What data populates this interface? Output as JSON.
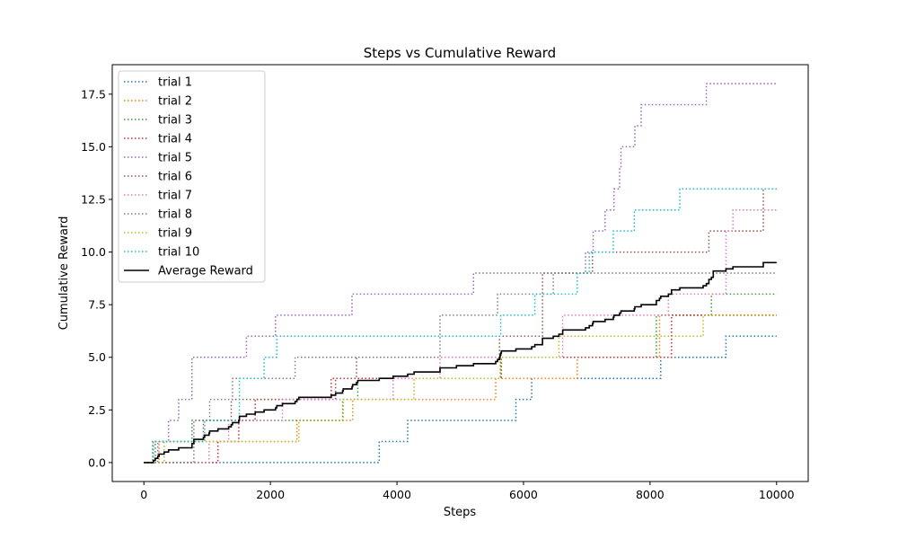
{
  "chart_data": {
    "type": "line",
    "title": "Steps vs Cumulative Reward",
    "xlabel": "Steps",
    "ylabel": "Cumulative Reward",
    "xlim": [
      -500,
      10500
    ],
    "ylim": [
      -0.9,
      18.9
    ],
    "xticks": [
      0,
      2000,
      4000,
      6000,
      8000,
      10000
    ],
    "xtick_labels": [
      "0",
      "2000",
      "4000",
      "6000",
      "8000",
      "10000"
    ],
    "yticks": [
      0,
      2.5,
      5,
      7.5,
      10,
      12.5,
      15,
      17.5
    ],
    "ytick_labels": [
      "0.0",
      "2.5",
      "5.0",
      "7.5",
      "10.0",
      "12.5",
      "15.0",
      "17.5"
    ],
    "grid": false,
    "legend_position": "upper-left",
    "series": [
      {
        "name": "trial 1",
        "color": "#1f77b4",
        "style": "dotted",
        "x": [
          0,
          3720,
          4170,
          5880,
          6130,
          8170,
          9200,
          10000
        ],
        "y": [
          0,
          1,
          2,
          3,
          4,
          5,
          6,
          6
        ]
      },
      {
        "name": "trial 2",
        "color": "#ff7f0e",
        "style": "dotted",
        "x": [
          0,
          240,
          2420,
          3300,
          5560,
          6850,
          8150,
          10000
        ],
        "y": [
          0,
          1,
          2,
          3,
          4,
          5,
          7,
          7
        ]
      },
      {
        "name": "trial 3",
        "color": "#2ca02c",
        "style": "dotted",
        "x": [
          0,
          180,
          760,
          3140,
          3380,
          5650,
          8100,
          8970,
          10000
        ],
        "y": [
          0,
          1,
          2,
          3,
          4,
          5,
          7,
          8,
          8
        ]
      },
      {
        "name": "trial 4",
        "color": "#d62728",
        "style": "dotted",
        "x": [
          0,
          1170,
          1500,
          1760,
          2580,
          2960,
          3000,
          4940,
          5640,
          8340,
          9000,
          10000
        ],
        "y": [
          0,
          1,
          2,
          3,
          3,
          4,
          4,
          4,
          5,
          7,
          7,
          7
        ]
      },
      {
        "name": "trial 5",
        "color": "#9467bd",
        "style": "dotted",
        "x": [
          0,
          220,
          390,
          550,
          760,
          1620,
          2080,
          3290,
          5210,
          6980,
          7100,
          7290,
          7430,
          7520,
          7540,
          7760,
          7860,
          7900,
          7950,
          8890,
          10000
        ],
        "y": [
          0,
          1,
          2,
          3,
          5,
          6,
          7,
          8,
          9,
          10,
          11,
          12,
          13,
          14,
          15,
          16,
          17,
          17,
          17,
          18,
          18
        ]
      },
      {
        "name": "trial 6",
        "color": "#8c564b",
        "style": "dotted",
        "x": [
          0,
          140,
          360,
          940,
          1380,
          1800,
          3030,
          3360,
          5620,
          6300,
          7090,
          8930,
          9100,
          9790,
          10000
        ],
        "y": [
          0,
          1,
          1,
          2,
          3,
          3,
          4,
          5,
          6,
          9,
          10,
          11,
          11,
          13,
          13
        ]
      },
      {
        "name": "trial 7",
        "color": "#e377c2",
        "style": "dotted",
        "x": [
          0,
          1030,
          1340,
          2190,
          2640,
          3940,
          4680,
          6620,
          6830,
          8290,
          9200,
          9310,
          10000
        ],
        "y": [
          0,
          1,
          2,
          3,
          3,
          4,
          5,
          7,
          7,
          8,
          11,
          12,
          12
        ]
      },
      {
        "name": "trial 8",
        "color": "#7f7f7f",
        "style": "dotted",
        "x": [
          0,
          790,
          1040,
          1400,
          2390,
          4680,
          5590,
          6470,
          6980,
          10000
        ],
        "y": [
          0,
          2,
          3,
          4,
          5,
          7,
          8,
          9,
          9,
          9
        ]
      },
      {
        "name": "trial 9",
        "color": "#bcbd22",
        "style": "dotted",
        "x": [
          0,
          320,
          2450,
          3150,
          4270,
          5630,
          6560,
          6650,
          8840,
          10000
        ],
        "y": [
          0,
          1,
          2,
          3,
          4,
          5,
          6,
          6,
          7,
          7
        ]
      },
      {
        "name": "trial 10",
        "color": "#17becf",
        "style": "dotted",
        "x": [
          0,
          150,
          960,
          1510,
          1900,
          2100,
          5640,
          6180,
          6850,
          7040,
          7420,
          7750,
          8470,
          10000
        ],
        "y": [
          0,
          1,
          2,
          4,
          5,
          6,
          7,
          8,
          9,
          10,
          11,
          12,
          13,
          13
        ]
      },
      {
        "name": "Average Reward",
        "color": "#000000",
        "style": "solid",
        "x": [
          0,
          150,
          180,
          220,
          240,
          320,
          360,
          390,
          550,
          760,
          790,
          940,
          960,
          1030,
          1040,
          1170,
          1340,
          1380,
          1400,
          1500,
          1510,
          1620,
          1760,
          1800,
          1900,
          2080,
          2100,
          2190,
          2390,
          2420,
          2450,
          2580,
          2640,
          2960,
          3000,
          3030,
          3140,
          3150,
          3290,
          3300,
          3360,
          3380,
          3720,
          3940,
          4170,
          4270,
          4680,
          4940,
          5210,
          5560,
          5590,
          5620,
          5630,
          5640,
          5650,
          5880,
          6130,
          6180,
          6300,
          6470,
          6560,
          6620,
          6850,
          6980,
          7040,
          7090,
          7100,
          7290,
          7420,
          7430,
          7520,
          7540,
          7750,
          7760,
          7860,
          7900,
          7950,
          8100,
          8150,
          8170,
          8290,
          8340,
          8470,
          8840,
          8890,
          8930,
          8970,
          9000,
          9100,
          9200,
          9310,
          9790,
          10000
        ],
        "y": [
          0,
          0.1,
          0.2,
          0.3,
          0.4,
          0.5,
          0.5,
          0.6,
          0.7,
          0.9,
          1.1,
          1.2,
          1.3,
          1.4,
          1.5,
          1.6,
          1.7,
          1.8,
          1.9,
          2.0,
          2.2,
          2.3,
          2.4,
          2.4,
          2.5,
          2.6,
          2.7,
          2.8,
          2.9,
          3.0,
          3.1,
          3.1,
          3.1,
          3.2,
          3.2,
          3.3,
          3.4,
          3.5,
          3.6,
          3.7,
          3.8,
          3.9,
          4.0,
          4.1,
          4.2,
          4.3,
          4.5,
          4.6,
          4.7,
          4.8,
          4.9,
          5.0,
          5.1,
          5.2,
          5.3,
          5.4,
          5.5,
          5.6,
          5.9,
          6.0,
          6.1,
          6.3,
          6.3,
          6.4,
          6.5,
          6.6,
          6.7,
          6.8,
          6.9,
          7.0,
          7.1,
          7.2,
          7.3,
          7.4,
          7.5,
          7.5,
          7.5,
          7.7,
          7.8,
          7.9,
          8.0,
          8.2,
          8.3,
          8.4,
          8.5,
          8.7,
          8.8,
          9.1,
          9.1,
          9.2,
          9.3,
          9.5,
          9.5
        ]
      }
    ]
  }
}
